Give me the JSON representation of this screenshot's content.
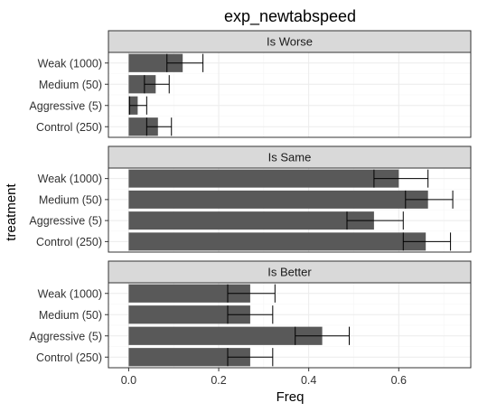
{
  "chart_data": {
    "type": "bar",
    "orientation": "horizontal",
    "title": "exp_newtabspeed",
    "xlabel": "Freq",
    "ylabel": "treatment",
    "xlim": [
      -0.045,
      0.76
    ],
    "xticks": [
      0.0,
      0.2,
      0.4,
      0.6
    ],
    "xtick_labels": [
      "0.0",
      "0.2",
      "0.4",
      "0.6"
    ],
    "grid": true,
    "categories": [
      "Weak (1000)",
      "Medium (50)",
      "Aggressive (5)",
      "Control (250)"
    ],
    "panels": [
      {
        "name": "Is Worse",
        "values": [
          0.12,
          0.06,
          0.02,
          0.065
        ],
        "errors": [
          [
            0.085,
            0.165
          ],
          [
            0.035,
            0.09
          ],
          [
            0.002,
            0.04
          ],
          [
            0.04,
            0.095
          ]
        ]
      },
      {
        "name": "Is Same",
        "values": [
          0.6,
          0.665,
          0.545,
          0.66
        ],
        "errors": [
          [
            0.545,
            0.665
          ],
          [
            0.615,
            0.72
          ],
          [
            0.485,
            0.61
          ],
          [
            0.61,
            0.715
          ]
        ]
      },
      {
        "name": "Is Better",
        "values": [
          0.27,
          0.27,
          0.43,
          0.27
        ],
        "errors": [
          [
            0.22,
            0.325
          ],
          [
            0.22,
            0.32
          ],
          [
            0.37,
            0.49
          ],
          [
            0.22,
            0.32
          ]
        ]
      }
    ],
    "colors": {
      "bar": "#595959",
      "errorbar": "#000000",
      "strip_fill": "#d9d9d9",
      "panel_border": "#333333",
      "grid_major": "#ebebeb",
      "grid_minor": "#f5f5f5"
    }
  }
}
